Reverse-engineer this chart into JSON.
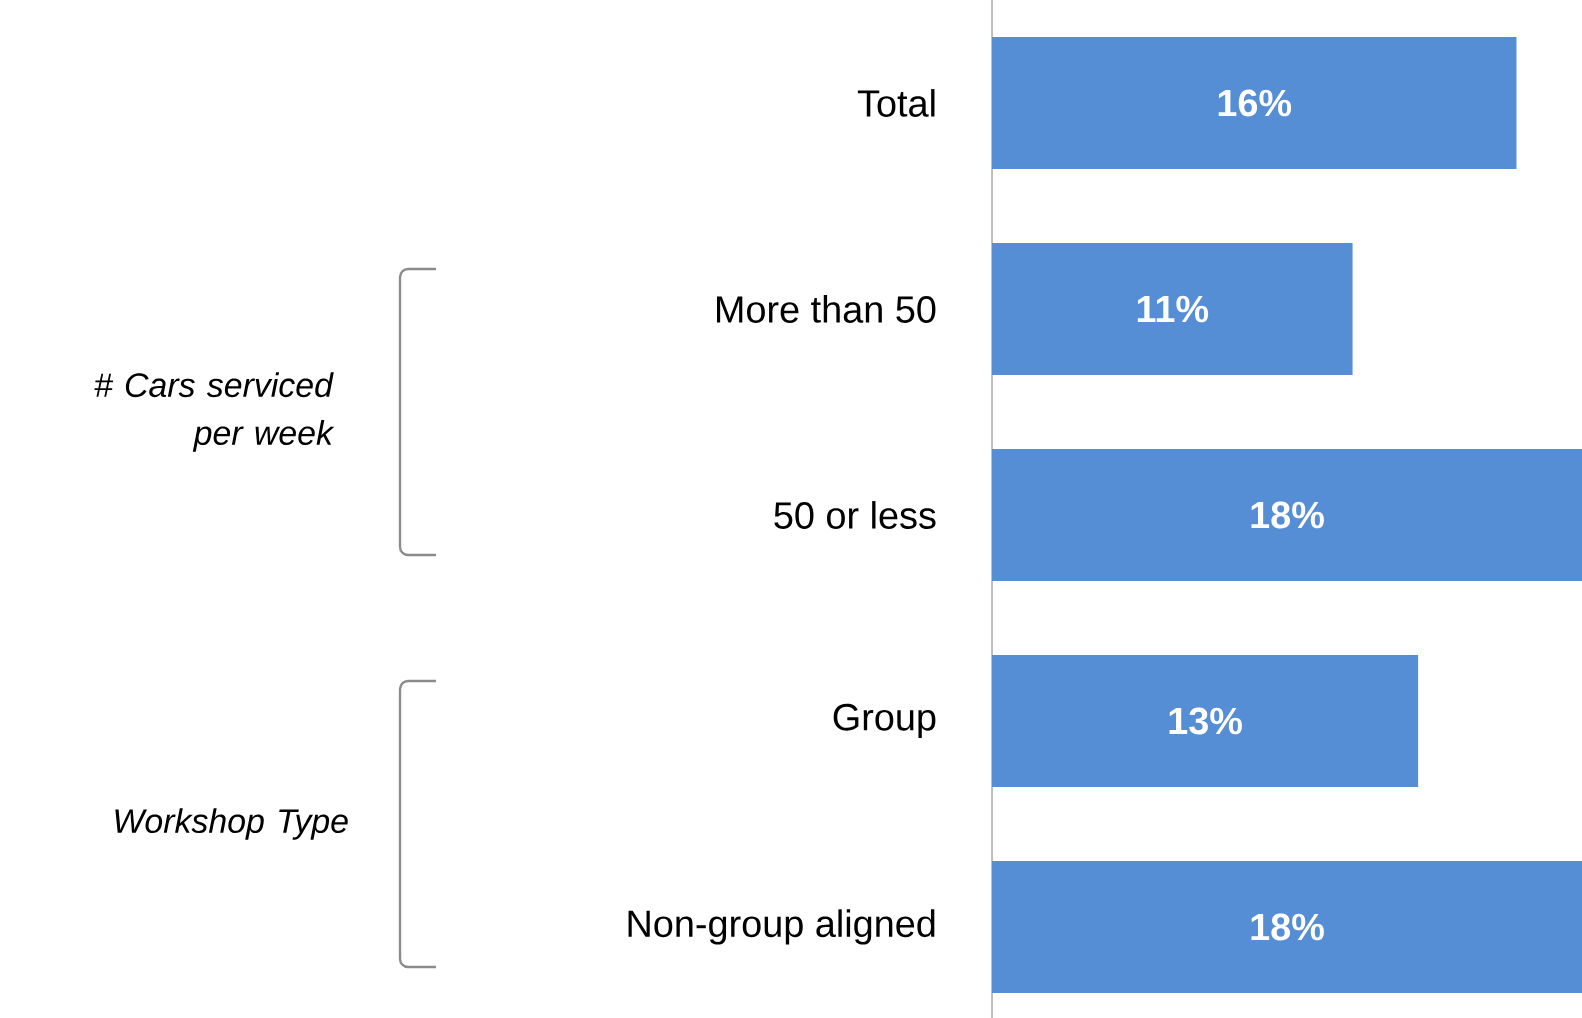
{
  "chart_data": {
    "type": "bar",
    "orientation": "horizontal",
    "categories": [
      "Total",
      "More than 50",
      "50 or less",
      "Group",
      "Non-group aligned"
    ],
    "values": [
      16,
      11,
      18,
      13,
      18
    ],
    "color": "#558ed5",
    "value_labels": [
      "16%",
      "11%",
      "18%",
      "13%",
      "18%"
    ],
    "annotations": [
      "# Cars serviced per week",
      "Workshop Type"
    ]
  }
}
